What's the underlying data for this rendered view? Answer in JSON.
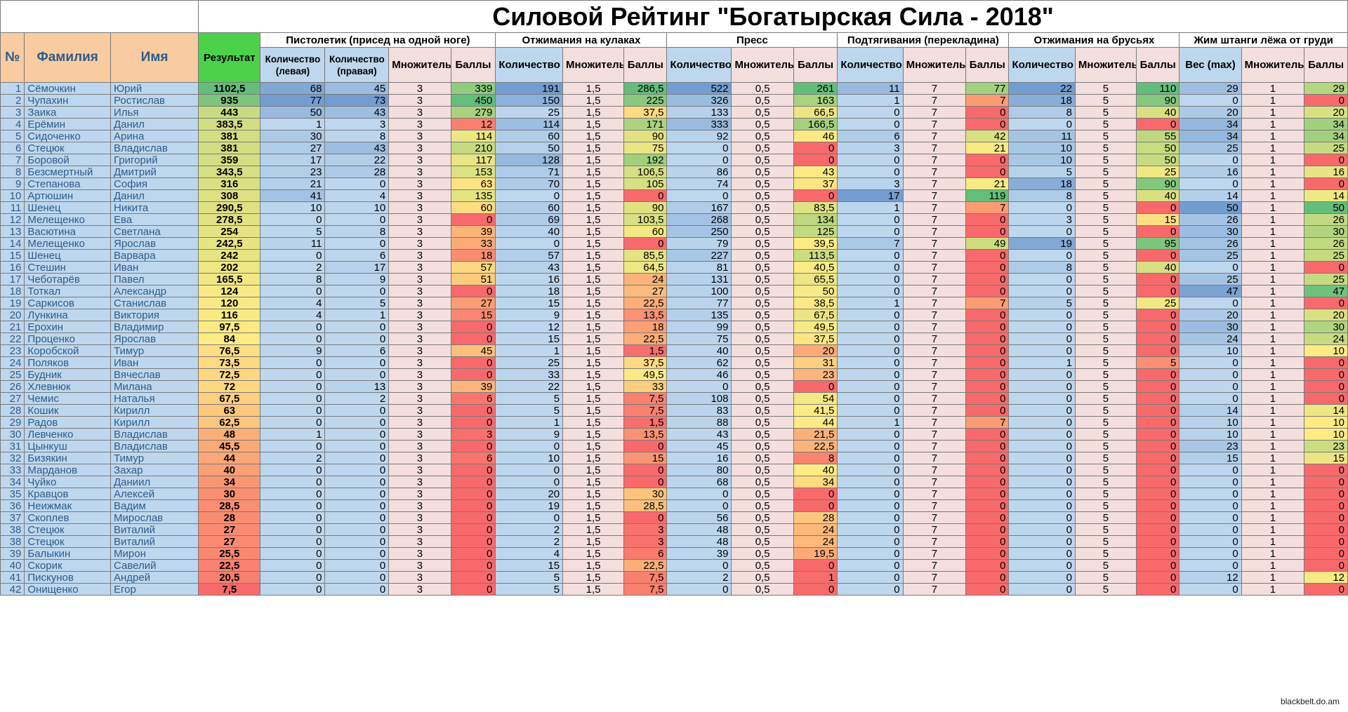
{
  "title": "Силовой Рейтинг \"Богатырская Сила - 2018\"",
  "headers": {
    "num": "№",
    "last_name": "Фамилия",
    "first_name": "Имя",
    "result": "Результат",
    "groups": [
      "Пистолетик (присед на одной ноге)",
      "Отжимания на кулаках",
      "Пресс",
      "Подтягивания (перекладина)",
      "Отжимания на брусьях",
      "Жим штанги лёжа от груди"
    ],
    "sub_left": "Количество (левая)",
    "sub_right": "Количество (правая)",
    "sub_qty": "Количество",
    "sub_weight": "Вес (max)",
    "sub_mult": "Множитель",
    "sub_points": "Баллы"
  },
  "colors": {
    "score_red": "#f8696b",
    "score_yellow": "#ffeb84",
    "score_green": "#63be7b",
    "qty_blue": "#5a8ac6",
    "header_orange": "#f8cba0",
    "result_header_green": "#4cd14a",
    "light_blue": "#bdd7ee",
    "light_pink": "#f4dede"
  },
  "multipliers": [
    "3",
    "1,5",
    "0,5",
    "7",
    "5",
    "1"
  ],
  "rows": [
    {
      "n": "1",
      "ln": "Сёмочкин",
      "fn": "Юрий",
      "res": "1102,5",
      "c": [
        "68",
        "45",
        "3",
        "339",
        "191",
        "1,5",
        "286,5",
        "522",
        "0,5",
        "261",
        "11",
        "7",
        "77",
        "22",
        "5",
        "110",
        "29",
        "1",
        "29"
      ]
    },
    {
      "n": "2",
      "ln": "Чупахин",
      "fn": "Ростислав",
      "res": "935",
      "c": [
        "77",
        "73",
        "3",
        "450",
        "150",
        "1,5",
        "225",
        "326",
        "0,5",
        "163",
        "1",
        "7",
        "7",
        "18",
        "5",
        "90",
        "0",
        "1",
        "0"
      ]
    },
    {
      "n": "3",
      "ln": "Заика",
      "fn": "Илья",
      "res": "443",
      "c": [
        "50",
        "43",
        "3",
        "279",
        "25",
        "1,5",
        "37,5",
        "133",
        "0,5",
        "66,5",
        "0",
        "7",
        "0",
        "8",
        "5",
        "40",
        "20",
        "1",
        "20"
      ]
    },
    {
      "n": "4",
      "ln": "Ерёмин",
      "fn": "Данил",
      "res": "383,5",
      "c": [
        "1",
        "3",
        "3",
        "12",
        "114",
        "1,5",
        "171",
        "333",
        "0,5",
        "166,5",
        "0",
        "7",
        "0",
        "0",
        "5",
        "0",
        "34",
        "1",
        "34"
      ]
    },
    {
      "n": "5",
      "ln": "Сидоченко",
      "fn": "Арина",
      "res": "381",
      "c": [
        "30",
        "8",
        "3",
        "114",
        "60",
        "1,5",
        "90",
        "92",
        "0,5",
        "46",
        "6",
        "7",
        "42",
        "11",
        "5",
        "55",
        "34",
        "1",
        "34"
      ]
    },
    {
      "n": "6",
      "ln": "Стецюк",
      "fn": "Владислав",
      "res": "381",
      "c": [
        "27",
        "43",
        "3",
        "210",
        "50",
        "1,5",
        "75",
        "0",
        "0,5",
        "0",
        "3",
        "7",
        "21",
        "10",
        "5",
        "50",
        "25",
        "1",
        "25"
      ]
    },
    {
      "n": "7",
      "ln": "Боровой",
      "fn": "Григорий",
      "res": "359",
      "c": [
        "17",
        "22",
        "3",
        "117",
        "128",
        "1,5",
        "192",
        "0",
        "0,5",
        "0",
        "0",
        "7",
        "0",
        "10",
        "5",
        "50",
        "0",
        "1",
        "0"
      ]
    },
    {
      "n": "8",
      "ln": "Безсмертный",
      "fn": "Дмитрий",
      "res": "343,5",
      "c": [
        "23",
        "28",
        "3",
        "153",
        "71",
        "1,5",
        "106,5",
        "86",
        "0,5",
        "43",
        "0",
        "7",
        "0",
        "5",
        "5",
        "25",
        "16",
        "1",
        "16"
      ]
    },
    {
      "n": "9",
      "ln": "Степанова",
      "fn": "София",
      "res": "316",
      "c": [
        "21",
        "0",
        "3",
        "63",
        "70",
        "1,5",
        "105",
        "74",
        "0,5",
        "37",
        "3",
        "7",
        "21",
        "18",
        "5",
        "90",
        "0",
        "1",
        "0"
      ]
    },
    {
      "n": "10",
      "ln": "Артюшин",
      "fn": "Данил",
      "res": "308",
      "c": [
        "41",
        "4",
        "3",
        "135",
        "0",
        "1,5",
        "0",
        "0",
        "0,5",
        "0",
        "17",
        "7",
        "119",
        "8",
        "5",
        "40",
        "14",
        "1",
        "14"
      ]
    },
    {
      "n": "11",
      "ln": "Шенец",
      "fn": "Никита",
      "res": "290,5",
      "c": [
        "10",
        "10",
        "3",
        "60",
        "60",
        "1,5",
        "90",
        "167",
        "0,5",
        "83,5",
        "1",
        "7",
        "7",
        "0",
        "5",
        "0",
        "50",
        "1",
        "50"
      ]
    },
    {
      "n": "12",
      "ln": "Мелещенко",
      "fn": "Ева",
      "res": "278,5",
      "c": [
        "0",
        "0",
        "3",
        "0",
        "69",
        "1,5",
        "103,5",
        "268",
        "0,5",
        "134",
        "0",
        "7",
        "0",
        "3",
        "5",
        "15",
        "26",
        "1",
        "26"
      ]
    },
    {
      "n": "13",
      "ln": "Васютина",
      "fn": "Светлана",
      "res": "254",
      "c": [
        "5",
        "8",
        "3",
        "39",
        "40",
        "1,5",
        "60",
        "250",
        "0,5",
        "125",
        "0",
        "7",
        "0",
        "0",
        "5",
        "0",
        "30",
        "1",
        "30"
      ]
    },
    {
      "n": "14",
      "ln": "Мелещенко",
      "fn": "Ярослав",
      "res": "242,5",
      "c": [
        "11",
        "0",
        "3",
        "33",
        "0",
        "1,5",
        "0",
        "79",
        "0,5",
        "39,5",
        "7",
        "7",
        "49",
        "19",
        "5",
        "95",
        "26",
        "1",
        "26"
      ]
    },
    {
      "n": "15",
      "ln": "Шенец",
      "fn": "Варвара",
      "res": "242",
      "c": [
        "0",
        "6",
        "3",
        "18",
        "57",
        "1,5",
        "85,5",
        "227",
        "0,5",
        "113,5",
        "0",
        "7",
        "0",
        "0",
        "5",
        "0",
        "25",
        "1",
        "25"
      ]
    },
    {
      "n": "16",
      "ln": "Стешин",
      "fn": "Иван",
      "res": "202",
      "c": [
        "2",
        "17",
        "3",
        "57",
        "43",
        "1,5",
        "64,5",
        "81",
        "0,5",
        "40,5",
        "0",
        "7",
        "0",
        "8",
        "5",
        "40",
        "0",
        "1",
        "0"
      ]
    },
    {
      "n": "17",
      "ln": "Чеботарёв",
      "fn": "Павел",
      "res": "165,5",
      "c": [
        "8",
        "9",
        "3",
        "51",
        "16",
        "1,5",
        "24",
        "131",
        "0,5",
        "65,5",
        "0",
        "7",
        "0",
        "0",
        "5",
        "0",
        "25",
        "1",
        "25"
      ]
    },
    {
      "n": "18",
      "ln": "Тоткал",
      "fn": "Александр",
      "res": "124",
      "c": [
        "0",
        "0",
        "3",
        "0",
        "18",
        "1,5",
        "27",
        "100",
        "0,5",
        "50",
        "0",
        "7",
        "0",
        "0",
        "5",
        "0",
        "47",
        "1",
        "47"
      ]
    },
    {
      "n": "19",
      "ln": "Саркисов",
      "fn": "Станислав",
      "res": "120",
      "c": [
        "4",
        "5",
        "3",
        "27",
        "15",
        "1,5",
        "22,5",
        "77",
        "0,5",
        "38,5",
        "1",
        "7",
        "7",
        "5",
        "5",
        "25",
        "0",
        "1",
        "0"
      ]
    },
    {
      "n": "20",
      "ln": "Лункина",
      "fn": "Виктория",
      "res": "116",
      "c": [
        "4",
        "1",
        "3",
        "15",
        "9",
        "1,5",
        "13,5",
        "135",
        "0,5",
        "67,5",
        "0",
        "7",
        "0",
        "0",
        "5",
        "0",
        "20",
        "1",
        "20"
      ]
    },
    {
      "n": "21",
      "ln": "Ерохин",
      "fn": "Владимир",
      "res": "97,5",
      "c": [
        "0",
        "0",
        "3",
        "0",
        "12",
        "1,5",
        "18",
        "99",
        "0,5",
        "49,5",
        "0",
        "7",
        "0",
        "0",
        "5",
        "0",
        "30",
        "1",
        "30"
      ]
    },
    {
      "n": "22",
      "ln": "Проценко",
      "fn": "Ярослав",
      "res": "84",
      "c": [
        "0",
        "0",
        "3",
        "0",
        "15",
        "1,5",
        "22,5",
        "75",
        "0,5",
        "37,5",
        "0",
        "7",
        "0",
        "0",
        "5",
        "0",
        "24",
        "1",
        "24"
      ]
    },
    {
      "n": "23",
      "ln": "Коробской",
      "fn": "Тимур",
      "res": "76,5",
      "c": [
        "9",
        "6",
        "3",
        "45",
        "1",
        "1,5",
        "1,5",
        "40",
        "0,5",
        "20",
        "0",
        "7",
        "0",
        "0",
        "5",
        "0",
        "10",
        "1",
        "10"
      ]
    },
    {
      "n": "24",
      "ln": "Поляков",
      "fn": "Иван",
      "res": "73,5",
      "c": [
        "0",
        "0",
        "3",
        "0",
        "25",
        "1,5",
        "37,5",
        "62",
        "0,5",
        "31",
        "0",
        "7",
        "0",
        "1",
        "5",
        "5",
        "0",
        "1",
        "0"
      ]
    },
    {
      "n": "25",
      "ln": "Будник",
      "fn": "Вячеслав",
      "res": "72,5",
      "c": [
        "0",
        "0",
        "3",
        "0",
        "33",
        "1,5",
        "49,5",
        "46",
        "0,5",
        "23",
        "0",
        "7",
        "0",
        "0",
        "5",
        "0",
        "0",
        "1",
        "0"
      ]
    },
    {
      "n": "26",
      "ln": "Хлевнюк",
      "fn": "Милана",
      "res": "72",
      "c": [
        "0",
        "13",
        "3",
        "39",
        "22",
        "1,5",
        "33",
        "0",
        "0,5",
        "0",
        "0",
        "7",
        "0",
        "0",
        "5",
        "0",
        "0",
        "1",
        "0"
      ]
    },
    {
      "n": "27",
      "ln": "Чемис",
      "fn": "Наталья",
      "res": "67,5",
      "c": [
        "0",
        "2",
        "3",
        "6",
        "5",
        "1,5",
        "7,5",
        "108",
        "0,5",
        "54",
        "0",
        "7",
        "0",
        "0",
        "5",
        "0",
        "0",
        "1",
        "0"
      ]
    },
    {
      "n": "28",
      "ln": "Кошик",
      "fn": "Кирилл",
      "res": "63",
      "c": [
        "0",
        "0",
        "3",
        "0",
        "5",
        "1,5",
        "7,5",
        "83",
        "0,5",
        "41,5",
        "0",
        "7",
        "0",
        "0",
        "5",
        "0",
        "14",
        "1",
        "14"
      ]
    },
    {
      "n": "29",
      "ln": "Радов",
      "fn": "Кирилл",
      "res": "62,5",
      "c": [
        "0",
        "0",
        "3",
        "0",
        "1",
        "1,5",
        "1,5",
        "88",
        "0,5",
        "44",
        "1",
        "7",
        "7",
        "0",
        "5",
        "0",
        "10",
        "1",
        "10"
      ]
    },
    {
      "n": "30",
      "ln": "Левченко",
      "fn": "Владислав",
      "res": "48",
      "c": [
        "1",
        "0",
        "3",
        "3",
        "9",
        "1,5",
        "13,5",
        "43",
        "0,5",
        "21,5",
        "0",
        "7",
        "0",
        "0",
        "5",
        "0",
        "10",
        "1",
        "10"
      ]
    },
    {
      "n": "31",
      "ln": "Цынкуш",
      "fn": "Владислав",
      "res": "45,5",
      "c": [
        "0",
        "0",
        "3",
        "0",
        "0",
        "1,5",
        "0",
        "45",
        "0,5",
        "22,5",
        "0",
        "7",
        "0",
        "0",
        "5",
        "0",
        "23",
        "1",
        "23"
      ]
    },
    {
      "n": "32",
      "ln": "Бизякин",
      "fn": "Тимур",
      "res": "44",
      "c": [
        "2",
        "0",
        "3",
        "6",
        "10",
        "1,5",
        "15",
        "16",
        "0,5",
        "8",
        "0",
        "7",
        "0",
        "0",
        "5",
        "0",
        "15",
        "1",
        "15"
      ]
    },
    {
      "n": "33",
      "ln": "Марданов",
      "fn": "Захар",
      "res": "40",
      "c": [
        "0",
        "0",
        "3",
        "0",
        "0",
        "1,5",
        "0",
        "80",
        "0,5",
        "40",
        "0",
        "7",
        "0",
        "0",
        "5",
        "0",
        "0",
        "1",
        "0"
      ]
    },
    {
      "n": "34",
      "ln": "Чуйко",
      "fn": "Даниил",
      "res": "34",
      "c": [
        "0",
        "0",
        "3",
        "0",
        "0",
        "1,5",
        "0",
        "68",
        "0,5",
        "34",
        "0",
        "7",
        "0",
        "0",
        "5",
        "0",
        "0",
        "1",
        "0"
      ]
    },
    {
      "n": "35",
      "ln": "Кравцов",
      "fn": "Алексей",
      "res": "30",
      "c": [
        "0",
        "0",
        "3",
        "0",
        "20",
        "1,5",
        "30",
        "0",
        "0,5",
        "0",
        "0",
        "7",
        "0",
        "0",
        "5",
        "0",
        "0",
        "1",
        "0"
      ]
    },
    {
      "n": "36",
      "ln": "Неижмак",
      "fn": "Вадим",
      "res": "28,5",
      "c": [
        "0",
        "0",
        "3",
        "0",
        "19",
        "1,5",
        "28,5",
        "0",
        "0,5",
        "0",
        "0",
        "7",
        "0",
        "0",
        "5",
        "0",
        "0",
        "1",
        "0"
      ]
    },
    {
      "n": "37",
      "ln": "Скоплев",
      "fn": "Мирослав",
      "res": "28",
      "c": [
        "0",
        "0",
        "3",
        "0",
        "0",
        "1,5",
        "0",
        "56",
        "0,5",
        "28",
        "0",
        "7",
        "0",
        "0",
        "5",
        "0",
        "0",
        "1",
        "0"
      ]
    },
    {
      "n": "38",
      "ln": "Стецюк",
      "fn": "Виталий",
      "res": "27",
      "c": [
        "0",
        "0",
        "3",
        "0",
        "2",
        "1,5",
        "3",
        "48",
        "0,5",
        "24",
        "0",
        "7",
        "0",
        "0",
        "5",
        "0",
        "0",
        "1",
        "0"
      ]
    },
    {
      "n": "38",
      "ln": "Стецюк",
      "fn": "Виталий",
      "res": "27",
      "c": [
        "0",
        "0",
        "3",
        "0",
        "2",
        "1,5",
        "3",
        "48",
        "0,5",
        "24",
        "0",
        "7",
        "0",
        "0",
        "5",
        "0",
        "0",
        "1",
        "0"
      ]
    },
    {
      "n": "39",
      "ln": "Балыкин",
      "fn": "Мирон",
      "res": "25,5",
      "c": [
        "0",
        "0",
        "3",
        "0",
        "4",
        "1,5",
        "6",
        "39",
        "0,5",
        "19,5",
        "0",
        "7",
        "0",
        "0",
        "5",
        "0",
        "0",
        "1",
        "0"
      ]
    },
    {
      "n": "40",
      "ln": "Скорик",
      "fn": "Савелий",
      "res": "22,5",
      "c": [
        "0",
        "0",
        "3",
        "0",
        "15",
        "1,5",
        "22,5",
        "0",
        "0,5",
        "0",
        "0",
        "7",
        "0",
        "0",
        "5",
        "0",
        "0",
        "1",
        "0"
      ]
    },
    {
      "n": "41",
      "ln": "Пискунов",
      "fn": "Андрей",
      "res": "20,5",
      "c": [
        "0",
        "0",
        "3",
        "0",
        "5",
        "1,5",
        "7,5",
        "2",
        "0,5",
        "1",
        "0",
        "7",
        "0",
        "0",
        "5",
        "0",
        "12",
        "1",
        "12"
      ]
    },
    {
      "n": "42",
      "ln": "Онищенко",
      "fn": "Егор",
      "res": "7,5",
      "c": [
        "0",
        "0",
        "3",
        "0",
        "5",
        "1,5",
        "7,5",
        "0",
        "0,5",
        "0",
        "0",
        "7",
        "0",
        "0",
        "5",
        "0",
        "0",
        "1",
        "0"
      ]
    }
  ],
  "watermark": "blackbelt.do.am"
}
